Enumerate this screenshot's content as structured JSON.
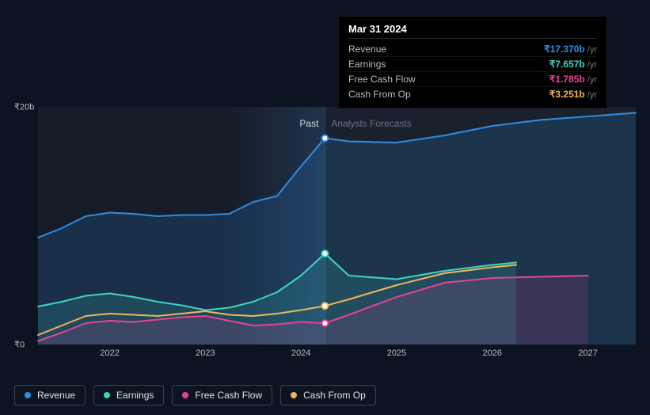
{
  "tooltip": {
    "date": "Mar 31 2024",
    "rows": [
      {
        "label": "Revenue",
        "value": "₹17.370b",
        "unit": "/yr",
        "color": "#2f8de4"
      },
      {
        "label": "Earnings",
        "value": "₹7.657b",
        "unit": "/yr",
        "color": "#3fd4c0"
      },
      {
        "label": "Free Cash Flow",
        "value": "₹1.785b",
        "unit": "/yr",
        "color": "#e84393"
      },
      {
        "label": "Cash From Op",
        "value": "₹3.251b",
        "unit": "/yr",
        "color": "#f0b65a"
      }
    ]
  },
  "chart": {
    "type": "area",
    "background_color": "#0d1421",
    "plot_bg": "rgba(255,255,255,0.015)",
    "ylim": [
      0,
      20
    ],
    "y_ticks": [
      {
        "v": 0,
        "label": "₹0"
      },
      {
        "v": 20,
        "label": "₹20b"
      }
    ],
    "x_domain": [
      2021.25,
      2027.5
    ],
    "x_ticks": [
      {
        "v": 2022,
        "label": "2022"
      },
      {
        "v": 2023,
        "label": "2023"
      },
      {
        "v": 2024,
        "label": "2024"
      },
      {
        "v": 2025,
        "label": "2025"
      },
      {
        "v": 2026,
        "label": "2026"
      },
      {
        "v": 2027,
        "label": "2027"
      }
    ],
    "present_x": 2024.25,
    "section_labels": {
      "past": "Past",
      "forecast": "Analysts Forecasts"
    },
    "highlight_band": {
      "from": 2023.25,
      "to": 2024.25
    },
    "divider_color": "#2a3340",
    "line_width": 2,
    "marker_radius": 4,
    "series": [
      {
        "key": "revenue",
        "name": "Revenue",
        "color": "#2f8de4",
        "fill_opacity": 0.18,
        "points": [
          [
            2021.25,
            9.0
          ],
          [
            2021.5,
            9.8
          ],
          [
            2021.75,
            10.8
          ],
          [
            2022.0,
            11.1
          ],
          [
            2022.25,
            11.0
          ],
          [
            2022.5,
            10.8
          ],
          [
            2022.75,
            10.9
          ],
          [
            2023.0,
            10.9
          ],
          [
            2023.25,
            11.0
          ],
          [
            2023.5,
            12.0
          ],
          [
            2023.75,
            12.5
          ],
          [
            2024.0,
            15.0
          ],
          [
            2024.25,
            17.37
          ],
          [
            2024.5,
            17.1
          ],
          [
            2025.0,
            17.0
          ],
          [
            2025.5,
            17.6
          ],
          [
            2026.0,
            18.4
          ],
          [
            2026.5,
            18.9
          ],
          [
            2027.0,
            19.2
          ],
          [
            2027.5,
            19.5
          ]
        ]
      },
      {
        "key": "earnings",
        "name": "Earnings",
        "color": "#3fd4c0",
        "fill_opacity": 0.15,
        "points": [
          [
            2021.25,
            3.2
          ],
          [
            2021.5,
            3.6
          ],
          [
            2021.75,
            4.1
          ],
          [
            2022.0,
            4.3
          ],
          [
            2022.25,
            4.0
          ],
          [
            2022.5,
            3.6
          ],
          [
            2022.75,
            3.3
          ],
          [
            2023.0,
            2.9
          ],
          [
            2023.25,
            3.1
          ],
          [
            2023.5,
            3.6
          ],
          [
            2023.75,
            4.4
          ],
          [
            2024.0,
            5.8
          ],
          [
            2024.25,
            7.66
          ],
          [
            2024.5,
            5.8
          ],
          [
            2025.0,
            5.5
          ],
          [
            2025.5,
            6.2
          ],
          [
            2026.0,
            6.7
          ],
          [
            2026.25,
            6.9
          ]
        ]
      },
      {
        "key": "cash_from_op",
        "name": "Cash From Op",
        "color": "#f0b65a",
        "fill_opacity": 0.0,
        "points": [
          [
            2021.25,
            0.8
          ],
          [
            2021.5,
            1.6
          ],
          [
            2021.75,
            2.4
          ],
          [
            2022.0,
            2.6
          ],
          [
            2022.25,
            2.5
          ],
          [
            2022.5,
            2.4
          ],
          [
            2022.75,
            2.6
          ],
          [
            2023.0,
            2.8
          ],
          [
            2023.25,
            2.5
          ],
          [
            2023.5,
            2.4
          ],
          [
            2023.75,
            2.6
          ],
          [
            2024.0,
            2.9
          ],
          [
            2024.25,
            3.25
          ],
          [
            2024.5,
            3.8
          ],
          [
            2025.0,
            5.0
          ],
          [
            2025.5,
            6.0
          ],
          [
            2026.0,
            6.5
          ],
          [
            2026.25,
            6.7
          ]
        ]
      },
      {
        "key": "free_cash_flow",
        "name": "Free Cash Flow",
        "color": "#e84393",
        "fill_opacity": 0.14,
        "points": [
          [
            2021.25,
            0.3
          ],
          [
            2021.5,
            1.0
          ],
          [
            2021.75,
            1.8
          ],
          [
            2022.0,
            2.0
          ],
          [
            2022.25,
            1.9
          ],
          [
            2022.5,
            2.1
          ],
          [
            2022.75,
            2.3
          ],
          [
            2023.0,
            2.4
          ],
          [
            2023.25,
            2.0
          ],
          [
            2023.5,
            1.6
          ],
          [
            2023.75,
            1.7
          ],
          [
            2024.0,
            1.9
          ],
          [
            2024.25,
            1.79
          ],
          [
            2024.5,
            2.5
          ],
          [
            2025.0,
            4.0
          ],
          [
            2025.5,
            5.2
          ],
          [
            2026.0,
            5.6
          ],
          [
            2026.5,
            5.7
          ],
          [
            2027.0,
            5.8
          ]
        ]
      }
    ],
    "markers_at_present": [
      "revenue",
      "earnings",
      "cash_from_op",
      "free_cash_flow"
    ]
  },
  "legend": [
    {
      "key": "revenue",
      "label": "Revenue",
      "color": "#2f8de4"
    },
    {
      "key": "earnings",
      "label": "Earnings",
      "color": "#3fd4c0"
    },
    {
      "key": "free_cash_flow",
      "label": "Free Cash Flow",
      "color": "#e84393"
    },
    {
      "key": "cash_from_op",
      "label": "Cash From Op",
      "color": "#f0b65a"
    }
  ]
}
